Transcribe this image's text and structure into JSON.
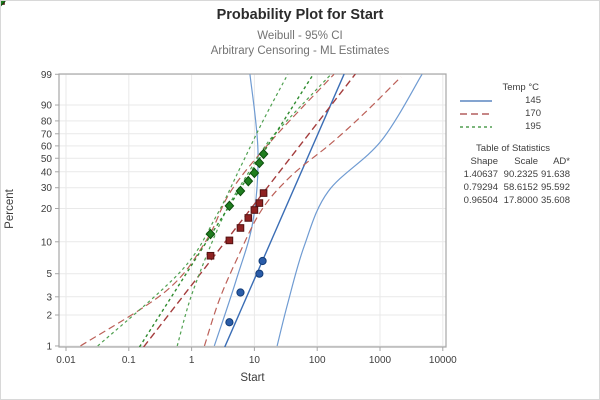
{
  "title": "Probability Plot for Start",
  "subtitle1": "Weibull - 95% CI",
  "subtitle2": "Arbitrary Censoring - ML Estimates",
  "x_axis_label": "Start",
  "y_axis_label": "Percent",
  "legend": {
    "title": "Temp °C"
  },
  "stats_table": {
    "title": "Table of Statistics",
    "columns": [
      "Shape",
      "Scale",
      "AD*"
    ],
    "rows": [
      [
        "1.40637",
        "90.2325",
        "91.638"
      ],
      [
        "0.79294",
        "58.6152",
        "95.592"
      ],
      [
        "0.96504",
        "17.8000",
        "35.608"
      ]
    ]
  },
  "chart_data": {
    "type": "scatter",
    "subtype": "weibull-probability-plot",
    "title": "Probability Plot for Start",
    "xlabel": "Start",
    "ylabel": "Percent",
    "x_scale": "log10",
    "y_scale": "weibull-percent",
    "x_ticks": [
      "0.01",
      "0.1",
      "1",
      "10",
      "100",
      "1000",
      "10000"
    ],
    "y_ticks": [
      1,
      2,
      3,
      5,
      10,
      20,
      30,
      40,
      50,
      60,
      70,
      80,
      90,
      99
    ],
    "ci_level": "95% CI",
    "grid_color": "#e9e9e9",
    "frame_color": "#a6a6a6",
    "series": [
      {
        "name": "145",
        "marker": "circle",
        "marker_fill": "#2A5CA8",
        "marker_stroke": "#123C78",
        "fit_color": "#3A6DB5",
        "ci_color": "#6F9BD2",
        "dash": "",
        "weibull_fit": {
          "shape": 1.40637,
          "scale": 90.2325
        },
        "points": [
          {
            "x": 4,
            "percent": 1.7
          },
          {
            "x": 6,
            "percent": 3.3
          },
          {
            "x": 12,
            "percent": 5.0
          },
          {
            "x": 13.5,
            "percent": 6.6
          }
        ],
        "ci_lower": [
          [
            2.3,
            1.0
          ],
          [
            5.1,
            4.3
          ],
          [
            9.5,
            15.5
          ],
          [
            11.4,
            55.8
          ],
          [
            8.5,
            99.0
          ]
        ],
        "ci_upper": [
          [
            23,
            1.0
          ],
          [
            34,
            2.6
          ],
          [
            62,
            9.1
          ],
          [
            150,
            28
          ],
          [
            1040,
            64
          ],
          [
            4670,
            99
          ]
        ]
      },
      {
        "name": "170",
        "marker": "square",
        "marker_fill": "#8F2222",
        "marker_stroke": "#521111",
        "fit_color": "#A43D3D",
        "ci_color": "#BC6058",
        "dash": "7 4",
        "weibull_fit": {
          "shape": 0.79294,
          "scale": 58.6152
        },
        "points": [
          {
            "x": 2,
            "percent": 7.4
          },
          {
            "x": 4,
            "percent": 10.3
          },
          {
            "x": 6,
            "percent": 13.4
          },
          {
            "x": 8,
            "percent": 16.5
          },
          {
            "x": 10,
            "percent": 19.4
          },
          {
            "x": 12,
            "percent": 22.3
          },
          {
            "x": 14,
            "percent": 27.1
          }
        ],
        "ci_lower": [
          [
            0.017,
            1.0
          ],
          [
            0.39,
            3.4
          ],
          [
            1.7,
            10.2
          ],
          [
            4.2,
            28
          ],
          [
            18.4,
            64
          ],
          [
            185,
            99
          ]
        ],
        "ci_upper": [
          [
            1.6,
            1.0
          ],
          [
            2.7,
            2.7
          ],
          [
            5.1,
            6.6
          ],
          [
            12.7,
            19
          ],
          [
            38,
            37
          ],
          [
            166,
            62
          ],
          [
            556,
            85
          ],
          [
            2160,
            98.7
          ]
        ]
      },
      {
        "name": "195",
        "marker": "diamond",
        "marker_fill": "#1F7D1F",
        "marker_stroke": "#0D4D0D",
        "fit_color": "#2E8B2E",
        "ci_color": "#4FA050",
        "dash": "3 3",
        "weibull_fit": {
          "shape": 0.96504,
          "scale": 17.8
        },
        "points": [
          {
            "x": 2,
            "percent": 11.8
          },
          {
            "x": 4,
            "percent": 21.1
          },
          {
            "x": 6,
            "percent": 28.2
          },
          {
            "x": 8,
            "percent": 33.9
          },
          {
            "x": 10,
            "percent": 39.2
          },
          {
            "x": 12,
            "percent": 46.4
          },
          {
            "x": 14,
            "percent": 53.4
          }
        ],
        "ci_lower": [
          [
            0.032,
            1.0
          ],
          [
            0.68,
            5.3
          ],
          [
            2.45,
            17
          ],
          [
            6.1,
            44
          ],
          [
            13.7,
            80
          ],
          [
            34,
            99
          ]
        ],
        "ci_upper": [
          [
            0.59,
            1.0
          ],
          [
            1.05,
            3.4
          ],
          [
            3.2,
            17
          ],
          [
            8.2,
            40
          ],
          [
            17,
            64
          ],
          [
            38,
            83
          ],
          [
            166,
            99
          ]
        ]
      }
    ]
  }
}
